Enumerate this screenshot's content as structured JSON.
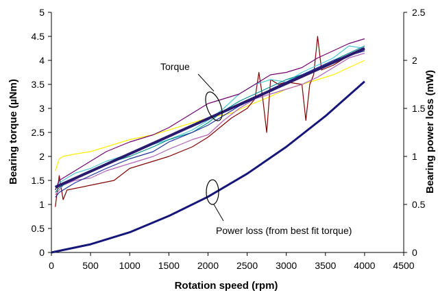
{
  "chart_data": {
    "type": "line",
    "xlabel": "Rotation speed (rpm)",
    "ylabel": "Bearing torque (µNm)",
    "y2label": "Bearing power loss (mW)",
    "xlim": [
      0,
      4500
    ],
    "ylim": [
      0,
      5
    ],
    "y2lim": [
      0,
      2.5
    ],
    "xticks": [
      "0",
      "500",
      "1000",
      "1500",
      "2000",
      "2500",
      "3000",
      "3500",
      "4000",
      "4500"
    ],
    "yticks": [
      "0",
      "0.5",
      "1",
      "1.5",
      "2",
      "2.5",
      "3",
      "3.5",
      "4",
      "4.5",
      "5"
    ],
    "y2ticks": [
      "0",
      "0.5",
      "1",
      "1.5",
      "2",
      "2.5"
    ],
    "grid": false,
    "annotations": [
      "Torque",
      "Power loss (from best fit torque)"
    ],
    "series": [
      {
        "color": "#ffee00",
        "axis": "left",
        "x": [
          50,
          100,
          150,
          300,
          500,
          700,
          1000,
          1300,
          1500,
          1800,
          2000,
          2300,
          2500,
          2800,
          3000,
          3200,
          3400,
          3600,
          3800,
          4000
        ],
        "y": [
          1.7,
          1.95,
          2.0,
          2.05,
          2.1,
          2.2,
          2.35,
          2.45,
          2.55,
          2.7,
          2.8,
          2.9,
          3.05,
          3.25,
          3.4,
          3.5,
          3.6,
          3.7,
          3.85,
          4.0
        ]
      },
      {
        "color": "#800000",
        "axis": "left",
        "x": [
          50,
          100,
          150,
          200,
          500,
          800,
          1000,
          1300,
          1500,
          1800,
          2000,
          2300,
          2500,
          2600,
          2650,
          2700,
          2750,
          2800,
          2900,
          3000,
          3200,
          3250,
          3300,
          3350,
          3400,
          3450,
          3600,
          3800,
          4000
        ],
        "y": [
          0.95,
          1.6,
          1.1,
          1.3,
          1.4,
          1.5,
          1.75,
          1.9,
          2.0,
          2.2,
          2.4,
          2.8,
          3.0,
          3.2,
          3.75,
          3.2,
          2.5,
          3.6,
          3.5,
          3.55,
          3.5,
          2.75,
          3.5,
          3.7,
          4.5,
          3.8,
          3.9,
          4.1,
          4.2
        ]
      },
      {
        "color": "#4bc8d2",
        "axis": "left",
        "x": [
          50,
          100,
          150,
          300,
          500,
          700,
          1000,
          1300,
          1500,
          1800,
          2000,
          2200,
          2400,
          2600,
          2800,
          3000,
          3200,
          3400,
          3600,
          3800,
          4000
        ],
        "y": [
          1.3,
          1.45,
          1.5,
          1.65,
          1.75,
          1.9,
          2.05,
          2.25,
          2.35,
          2.55,
          2.75,
          3.0,
          3.3,
          3.5,
          3.6,
          3.55,
          3.75,
          3.9,
          4.05,
          4.3,
          4.25
        ]
      },
      {
        "color": "#b060b8",
        "axis": "left",
        "x": [
          50,
          100,
          150,
          300,
          500,
          700,
          1000,
          1300,
          1500,
          1800,
          2000,
          2200,
          2400,
          2600,
          2800,
          3000,
          3200,
          3400,
          3600,
          3800,
          4000
        ],
        "y": [
          1.2,
          1.3,
          1.4,
          1.5,
          1.55,
          1.7,
          1.85,
          2.0,
          2.15,
          2.35,
          2.45,
          2.75,
          3.0,
          3.2,
          3.3,
          3.4,
          3.5,
          3.65,
          3.85,
          4.05,
          4.15
        ]
      },
      {
        "color": "#700070",
        "axis": "left",
        "x": [
          50,
          100,
          150,
          300,
          500,
          700,
          1000,
          1300,
          1500,
          1700,
          1900,
          2000,
          2200,
          2400,
          2600,
          2800,
          3000,
          3200,
          3400,
          3600,
          3800,
          4000
        ],
        "y": [
          1.3,
          1.5,
          1.55,
          1.7,
          1.9,
          2.1,
          2.3,
          2.45,
          2.6,
          2.8,
          3.0,
          3.1,
          3.2,
          3.3,
          3.5,
          3.7,
          3.75,
          3.85,
          4.05,
          4.2,
          4.35,
          4.45
        ]
      },
      {
        "color": "#009090",
        "axis": "left",
        "x": [
          50,
          100,
          150,
          300,
          500,
          700,
          1000,
          1300,
          1500,
          1800,
          2000,
          2200,
          2400,
          2600,
          2800,
          3000,
          3200,
          3400,
          3600,
          3800,
          4000
        ],
        "y": [
          1.25,
          1.35,
          1.4,
          1.55,
          1.7,
          1.85,
          2.0,
          2.2,
          2.35,
          2.5,
          2.7,
          2.95,
          3.15,
          3.3,
          3.45,
          3.6,
          3.7,
          3.85,
          4.0,
          4.15,
          4.3
        ]
      },
      {
        "color": "#2030a0",
        "axis": "left",
        "x": [
          50,
          100,
          150,
          300,
          500,
          700,
          1000,
          1300,
          1500,
          1800,
          2000,
          2200,
          2400,
          2600,
          2800,
          3000,
          3200,
          3400,
          3600,
          3800,
          4000
        ],
        "y": [
          1.15,
          1.25,
          1.3,
          1.45,
          1.6,
          1.75,
          1.95,
          2.1,
          2.3,
          2.5,
          2.65,
          2.85,
          3.05,
          3.2,
          3.4,
          3.55,
          3.7,
          3.85,
          4.0,
          4.1,
          4.2
        ]
      },
      {
        "color": "#2a1a6e",
        "axis": "left",
        "width": 4,
        "x": [
          50,
          4000
        ],
        "y": [
          1.36,
          4.25
        ]
      },
      {
        "color": "#15157a",
        "axis": "right",
        "width": 3,
        "x": [
          0,
          500,
          1000,
          1500,
          2000,
          2500,
          3000,
          3500,
          4000
        ],
        "y": [
          0.0,
          0.085,
          0.21,
          0.38,
          0.58,
          0.82,
          1.1,
          1.42,
          1.78
        ]
      }
    ]
  }
}
